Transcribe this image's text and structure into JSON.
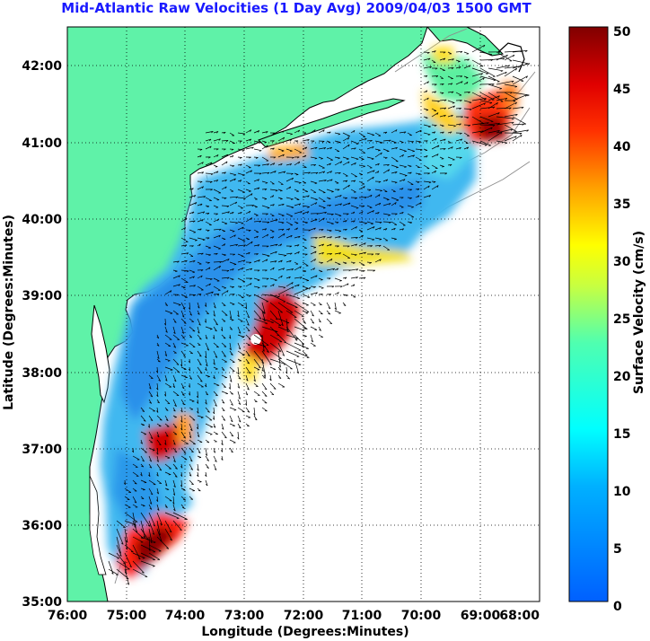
{
  "title": "Mid-Atlantic Raw Velocities (1 Day Avg) 2009/04/03 1500 GMT",
  "map": {
    "xlabel": "Longitude (Degrees:Minutes)",
    "ylabel": "Latitude (Degrees:Minutes)",
    "lon_range": [
      -76,
      -68
    ],
    "lat_range": [
      35,
      42.5
    ],
    "lon_ticks": [
      "76:00",
      "75:00",
      "74:00",
      "73:00",
      "72:00",
      "71:00",
      "70:00",
      "69:00",
      "68:00"
    ],
    "lat_ticks": [
      "35:00",
      "36:00",
      "37:00",
      "38:00",
      "39:00",
      "40:00",
      "41:00",
      "42:00"
    ],
    "grid": "dotted",
    "land_color": "#5ff2a8",
    "coast_color": "#000000",
    "bathymetry_color": "#8c8c8c"
  },
  "colorbar": {
    "label": "Surface Velocity (cm/s)",
    "min": 0,
    "max": 50,
    "ticks": [
      "0",
      "5",
      "10",
      "15",
      "20",
      "25",
      "30",
      "35",
      "40",
      "45",
      "50"
    ],
    "colormap": "jet"
  }
}
